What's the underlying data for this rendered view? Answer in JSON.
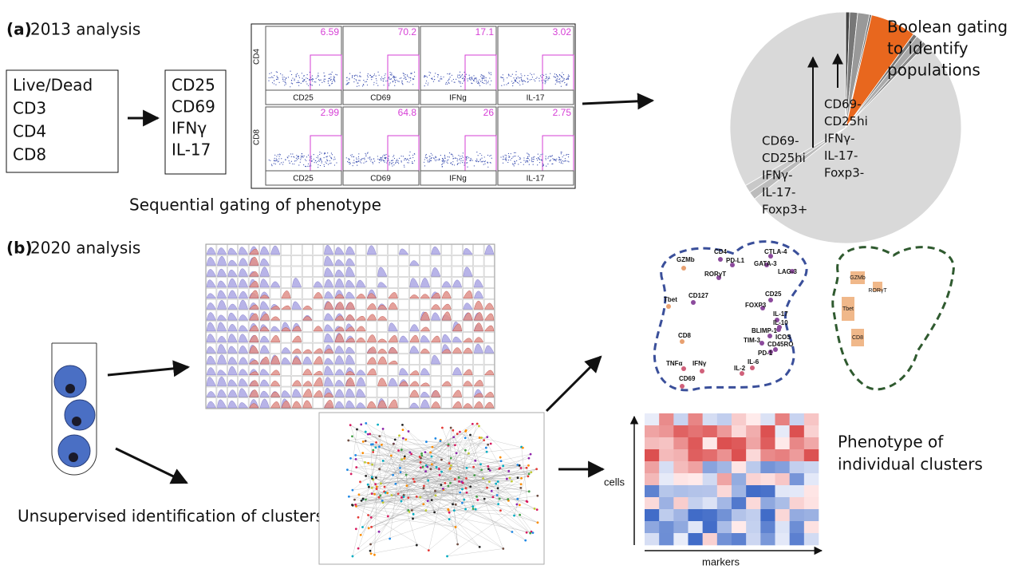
{
  "panel_a": {
    "label": "(a)",
    "title": "2013 analysis",
    "box1": [
      "Live/Dead",
      "CD3",
      "CD4",
      "CD8"
    ],
    "box2": [
      "CD25",
      "CD69",
      "IFNγ",
      "IL-17"
    ],
    "flow": {
      "rows": [
        {
          "name": "CD4",
          "values": [
            6.59,
            70.2,
            17.1,
            3.02
          ],
          "markers": [
            "CD25",
            "CD69",
            "IFNg",
            "IL-17"
          ]
        },
        {
          "name": "CD8",
          "values": [
            2.99,
            64.8,
            26,
            2.75
          ],
          "markers": [
            "CD25",
            "CD69",
            "IFNg",
            "IL-17"
          ]
        }
      ]
    },
    "caption": "Sequential gating of phenotype",
    "pie_title": [
      "Boolean gating",
      "to identify",
      "populations"
    ],
    "annotation_left": [
      "CD69-",
      "CD25hi",
      "IFNγ-",
      "IL-17-",
      "Foxp3+"
    ],
    "annotation_right": [
      "CD69-",
      "CD25hi",
      "IFNγ-",
      "IL-17-",
      "Foxp3-"
    ]
  },
  "panel_b": {
    "label": "(b)",
    "title": "2020 analysis",
    "caption": "Unsupervised identification of clusters",
    "map_markers": [
      "GZMb",
      "CD4",
      "PD-L1",
      "CTLA-4",
      "GATA-3",
      "LAG-3",
      "RORγT",
      "Tbet",
      "CD127",
      "CD25",
      "FOXP3",
      "IL-17",
      "IL-10",
      "BLIMP-1",
      "ICOS",
      "TIM-3",
      "CD45RO",
      "PD-1",
      "CD8",
      "TNFα",
      "IFNγ",
      "IL-6",
      "IL-2",
      "CD69"
    ],
    "map2_markers": [
      "GZMb",
      "RORγT",
      "Tbet",
      "CD8"
    ],
    "heatmap_y_label": "cells",
    "heatmap_x_label": "markers",
    "heatmap_caption": [
      "Phenotype of",
      "individual  clusters"
    ]
  }
}
